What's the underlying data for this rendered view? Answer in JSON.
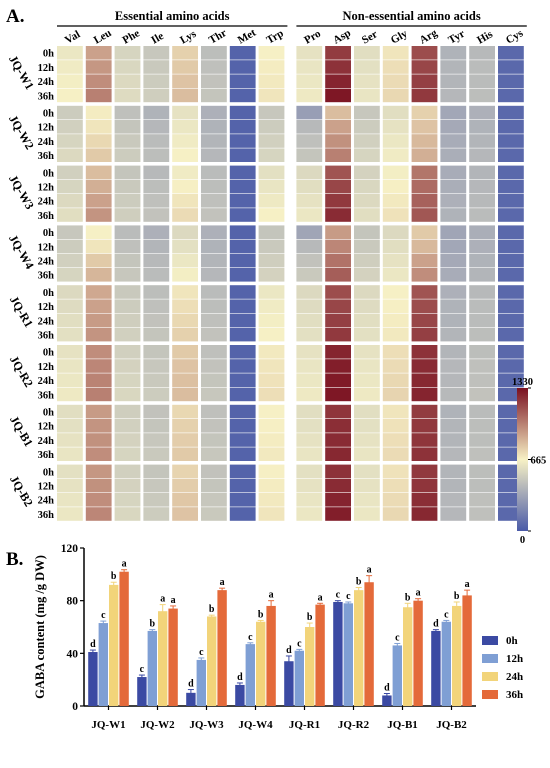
{
  "panels": {
    "a": "A.",
    "b": "B."
  },
  "chart_data": [
    {
      "type": "heatmap",
      "panel": "A.",
      "groups": [
        {
          "label": "Essential amino acids",
          "columns": [
            "Val",
            "Leu",
            "Phe",
            "Ile",
            "Lys",
            "Thr",
            "Met",
            "Trp"
          ]
        },
        {
          "label": "Non-essential amino acids",
          "columns": [
            "Pro",
            "Asp",
            "Ser",
            "Gly",
            "Arg",
            "Tyr",
            "His",
            "Cys"
          ]
        }
      ],
      "columns": [
        "Val",
        "Leu",
        "Phe",
        "Ile",
        "Lys",
        "Thr",
        "Met",
        "Trp",
        "Pro",
        "Asp",
        "Ser",
        "Gly",
        "Arg",
        "Tyr",
        "His",
        "Cys"
      ],
      "row_blocks": [
        "JQ-W1",
        "JQ-W2",
        "JQ-W3",
        "JQ-W4",
        "JQ-R1",
        "JQ-R2",
        "JQ-B1",
        "JQ-B2"
      ],
      "row_times": [
        "0h",
        "12h",
        "24h",
        "36h"
      ],
      "colorbar": {
        "min": 0,
        "mid": 665,
        "max": 1330,
        "tick_labels": [
          "0",
          "665",
          "1330"
        ],
        "colors": [
          "#4a5aa8",
          "#f7f1c5",
          "#7a1020"
        ]
      },
      "values": [
        [
          [
            620,
            900,
            540,
            480,
            760,
            440,
            40,
            660,
            600,
            1200,
            580,
            700,
            1150,
            390,
            420,
            60
          ],
          [
            640,
            930,
            550,
            490,
            780,
            450,
            40,
            680,
            610,
            1230,
            590,
            720,
            1170,
            400,
            430,
            60
          ],
          [
            650,
            960,
            560,
            500,
            800,
            460,
            40,
            690,
            620,
            1270,
            600,
            730,
            1190,
            400,
            430,
            60
          ],
          [
            660,
            1000,
            570,
            510,
            820,
            470,
            40,
            700,
            630,
            1310,
            610,
            740,
            1210,
            410,
            440,
            60
          ]
        ],
        [
          [
            500,
            680,
            450,
            390,
            600,
            380,
            40,
            480,
            300,
            820,
            480,
            580,
            760,
            340,
            380,
            60
          ],
          [
            520,
            700,
            470,
            410,
            620,
            390,
            40,
            500,
            420,
            900,
            500,
            600,
            800,
            350,
            390,
            60
          ],
          [
            540,
            740,
            490,
            430,
            640,
            400,
            40,
            520,
            450,
            950,
            520,
            620,
            830,
            360,
            400,
            60
          ],
          [
            560,
            780,
            500,
            440,
            660,
            410,
            40,
            540,
            470,
            1000,
            540,
            640,
            860,
            370,
            410,
            60
          ]
        ],
        [
          [
            520,
            820,
            470,
            420,
            640,
            430,
            40,
            590,
            560,
            1130,
            530,
            650,
            1030,
            360,
            400,
            60
          ],
          [
            540,
            860,
            490,
            440,
            670,
            440,
            40,
            610,
            580,
            1170,
            550,
            670,
            1060,
            370,
            410,
            60
          ],
          [
            560,
            900,
            500,
            450,
            700,
            450,
            40,
            630,
            600,
            1210,
            560,
            690,
            1090,
            380,
            420,
            60
          ],
          [
            580,
            940,
            510,
            460,
            730,
            460,
            40,
            660,
            620,
            1250,
            580,
            710,
            1120,
            390,
            430,
            60
          ]
        ],
        [
          [
            480,
            660,
            430,
            380,
            560,
            380,
            40,
            470,
            330,
            920,
            470,
            560,
            780,
            330,
            370,
            60
          ],
          [
            500,
            700,
            450,
            400,
            590,
            390,
            40,
            490,
            420,
            980,
            490,
            580,
            830,
            340,
            380,
            60
          ],
          [
            520,
            780,
            470,
            420,
            620,
            400,
            40,
            510,
            460,
            1040,
            510,
            600,
            900,
            350,
            390,
            60
          ],
          [
            540,
            840,
            480,
            430,
            650,
            410,
            40,
            530,
            490,
            1100,
            530,
            620,
            960,
            360,
            400,
            60
          ]
        ],
        [
          [
            560,
            880,
            490,
            440,
            700,
            430,
            40,
            620,
            560,
            1150,
            560,
            660,
            1130,
            380,
            420,
            60
          ],
          [
            570,
            900,
            500,
            450,
            720,
            440,
            40,
            640,
            570,
            1170,
            570,
            670,
            1150,
            390,
            430,
            60
          ],
          [
            580,
            920,
            510,
            460,
            740,
            450,
            40,
            650,
            580,
            1190,
            580,
            680,
            1170,
            390,
            430,
            60
          ],
          [
            590,
            940,
            520,
            470,
            760,
            460,
            40,
            660,
            590,
            1210,
            590,
            690,
            1190,
            400,
            440,
            60
          ]
        ],
        [
          [
            600,
            960,
            520,
            470,
            780,
            450,
            40,
            690,
            600,
            1270,
            600,
            720,
            1230,
            400,
            440,
            60
          ],
          [
            610,
            980,
            530,
            480,
            800,
            460,
            40,
            700,
            610,
            1290,
            610,
            730,
            1250,
            410,
            450,
            60
          ],
          [
            620,
            990,
            540,
            490,
            810,
            470,
            40,
            710,
            620,
            1300,
            620,
            740,
            1260,
            410,
            450,
            60
          ],
          [
            630,
            1000,
            550,
            500,
            820,
            480,
            40,
            720,
            630,
            1310,
            630,
            750,
            1270,
            420,
            460,
            60
          ]
        ],
        [
          [
            580,
            920,
            510,
            460,
            740,
            450,
            40,
            660,
            580,
            1220,
            580,
            700,
            1200,
            390,
            430,
            60
          ],
          [
            590,
            940,
            520,
            470,
            760,
            460,
            40,
            670,
            590,
            1240,
            590,
            710,
            1210,
            400,
            440,
            60
          ],
          [
            600,
            950,
            530,
            480,
            770,
            470,
            40,
            680,
            600,
            1250,
            600,
            720,
            1220,
            400,
            440,
            60
          ],
          [
            610,
            960,
            540,
            490,
            780,
            480,
            40,
            690,
            610,
            1260,
            610,
            730,
            1230,
            410,
            450,
            60
          ]
        ],
        [
          [
            590,
            930,
            520,
            470,
            750,
            460,
            40,
            670,
            590,
            1230,
            590,
            710,
            1210,
            400,
            440,
            60
          ],
          [
            600,
            950,
            530,
            480,
            770,
            470,
            40,
            680,
            600,
            1250,
            600,
            720,
            1220,
            400,
            440,
            60
          ],
          [
            610,
            960,
            540,
            490,
            790,
            480,
            40,
            690,
            610,
            1270,
            610,
            730,
            1240,
            410,
            450,
            60
          ],
          [
            620,
            980,
            550,
            500,
            800,
            490,
            40,
            700,
            620,
            1290,
            620,
            740,
            1260,
            410,
            450,
            60
          ]
        ]
      ]
    },
    {
      "type": "bar",
      "panel": "B.",
      "ylabel": "GABA content (mg /g DW)",
      "ylim": [
        0,
        120
      ],
      "yticks": [
        0,
        40,
        80,
        120
      ],
      "categories": [
        "JQ-W1",
        "JQ-W2",
        "JQ-W3",
        "JQ-W4",
        "JQ-R1",
        "JQ-R2",
        "JQ-B1",
        "JQ-B2"
      ],
      "legend_position": "right",
      "series": [
        {
          "name": "0h",
          "color": "#3b4aa3",
          "values": [
            41,
            22,
            10,
            16,
            34,
            79,
            8,
            57
          ],
          "errors": [
            1.5,
            1.5,
            2.5,
            1.5,
            4,
            1,
            1.5,
            1
          ],
          "letters": [
            "d",
            "c",
            "d",
            "d",
            "d",
            "c",
            "d",
            "d"
          ]
        },
        {
          "name": "12h",
          "color": "#7f9fd4",
          "values": [
            63,
            57,
            35,
            47,
            42,
            78,
            46,
            64
          ],
          "errors": [
            1.5,
            1,
            1.5,
            1,
            1,
            1,
            1.5,
            1
          ],
          "letters": [
            "c",
            "b",
            "c",
            "c",
            "c",
            "c",
            "c",
            "c"
          ]
        },
        {
          "name": "24h",
          "color": "#f2d47a",
          "values": [
            92,
            72,
            68,
            64,
            60,
            88,
            75,
            76
          ],
          "errors": [
            2,
            5,
            1,
            1,
            3,
            2,
            3,
            3
          ],
          "letters": [
            "b",
            "a",
            "b",
            "b",
            "b",
            "b",
            "b",
            "b"
          ]
        },
        {
          "name": "36h",
          "color": "#e46a3a",
          "values": [
            102,
            74,
            88,
            76,
            77,
            94,
            80,
            84
          ],
          "errors": [
            1.5,
            2,
            1.5,
            4,
            1,
            5,
            1.5,
            4
          ],
          "letters": [
            "a",
            "a",
            "a",
            "a",
            "a",
            "a",
            "a",
            "a"
          ]
        }
      ]
    }
  ]
}
